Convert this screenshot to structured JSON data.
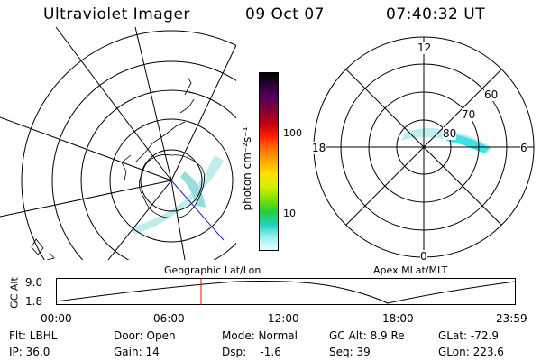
{
  "header": {
    "title": "Ultraviolet Imager",
    "date": "09 Oct 07",
    "time": "07:40:32 UT"
  },
  "colorbar": {
    "unit_label": "photon cm⁻²s⁻¹",
    "ticks": [
      "100",
      "10"
    ],
    "colors": [
      "#000000",
      "#2b003d",
      "#5a005a",
      "#8a0030",
      "#c00010",
      "#ff2000",
      "#ff7000",
      "#ffaa00",
      "#ffe000",
      "#d0f000",
      "#80e000",
      "#20d040",
      "#20d0c0",
      "#a0f0f0",
      "#e8fcfc"
    ]
  },
  "geo_panel": {
    "caption": "Geographic Lat/Lon"
  },
  "apex_panel": {
    "caption": "Apex MLat/MLT",
    "mlt_labels": [
      "12",
      "18",
      "6",
      "0"
    ],
    "mlat_labels": [
      "60",
      "70",
      "80"
    ]
  },
  "altitude_plot": {
    "ylabel": "GC Alt",
    "yticks": [
      "9.0",
      "1.8"
    ],
    "xticks": [
      "00:00",
      "06:00",
      "12:00",
      "18:00",
      "23:59"
    ]
  },
  "status": {
    "flt": "Flt: LBHL",
    "ip": "IP: 36.0",
    "door": "Door: Open",
    "gain": "Gain: 14",
    "mode": "Mode: Normal",
    "dsp": "Dsp:    -1.6",
    "gc_alt": "GC Alt: 8.9 Re",
    "seq": "Seq: 39",
    "glat": "GLat: -72.9",
    "glon": "GLon: 223.6"
  },
  "colors": {
    "aurora": "#bfecec",
    "aurora_bright": "#40e0e8",
    "marker": "#ff0000"
  }
}
